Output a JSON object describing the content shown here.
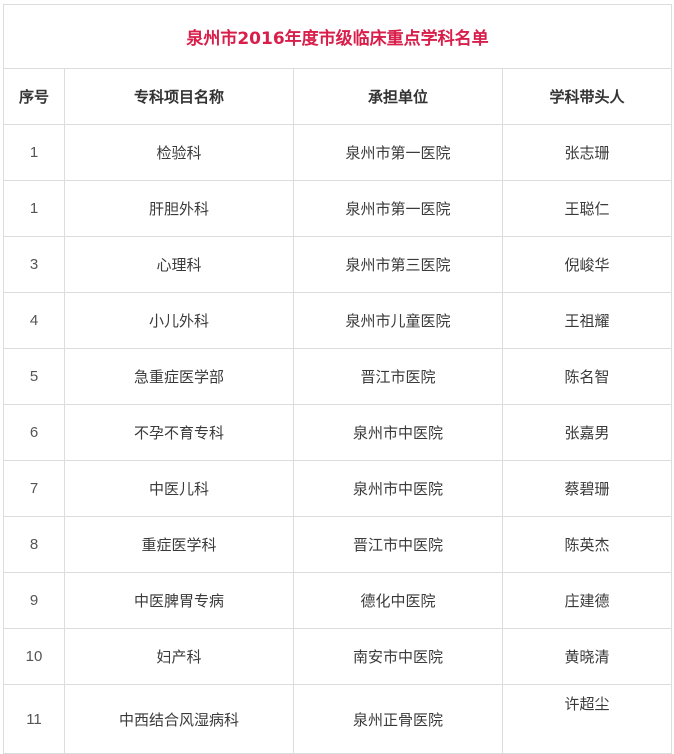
{
  "title": "泉州市2016年度市级临床重点学科名单",
  "columns": [
    "序号",
    "专科项目名称",
    "承担单位",
    "学科带头人"
  ],
  "rows": [
    {
      "no": "1",
      "name": "检验科",
      "unit": "泉州市第一医院",
      "leader": "张志珊"
    },
    {
      "no": "1",
      "name": "肝胆外科",
      "unit": "泉州市第一医院",
      "leader": "王聪仁"
    },
    {
      "no": "3",
      "name": "心理科",
      "unit": "泉州市第三医院",
      "leader": "倪峻华"
    },
    {
      "no": "4",
      "name": "小儿外科",
      "unit": "泉州市儿童医院",
      "leader": "王祖耀"
    },
    {
      "no": "5",
      "name": "急重症医学部",
      "unit": "晋江市医院",
      "leader": "陈名智"
    },
    {
      "no": "6",
      "name": "不孕不育专科",
      "unit": "泉州市中医院",
      "leader": "张嘉男"
    },
    {
      "no": "7",
      "name": "中医儿科",
      "unit": "泉州市中医院",
      "leader": "蔡碧珊"
    },
    {
      "no": "8",
      "name": "重症医学科",
      "unit": "晋江市中医院",
      "leader": "陈英杰"
    },
    {
      "no": "9",
      "name": "中医脾胃专病",
      "unit": "德化中医院",
      "leader": "庄建德"
    },
    {
      "no": "10",
      "name": "妇产科",
      "unit": "南安市中医院",
      "leader": "黄晓清"
    },
    {
      "no": "11",
      "name": "中西结合风湿病科",
      "unit": "泉州正骨医院",
      "leader": "许超尘"
    }
  ],
  "colors": {
    "title": "#d81e4a",
    "border": "#dcdcdc"
  }
}
